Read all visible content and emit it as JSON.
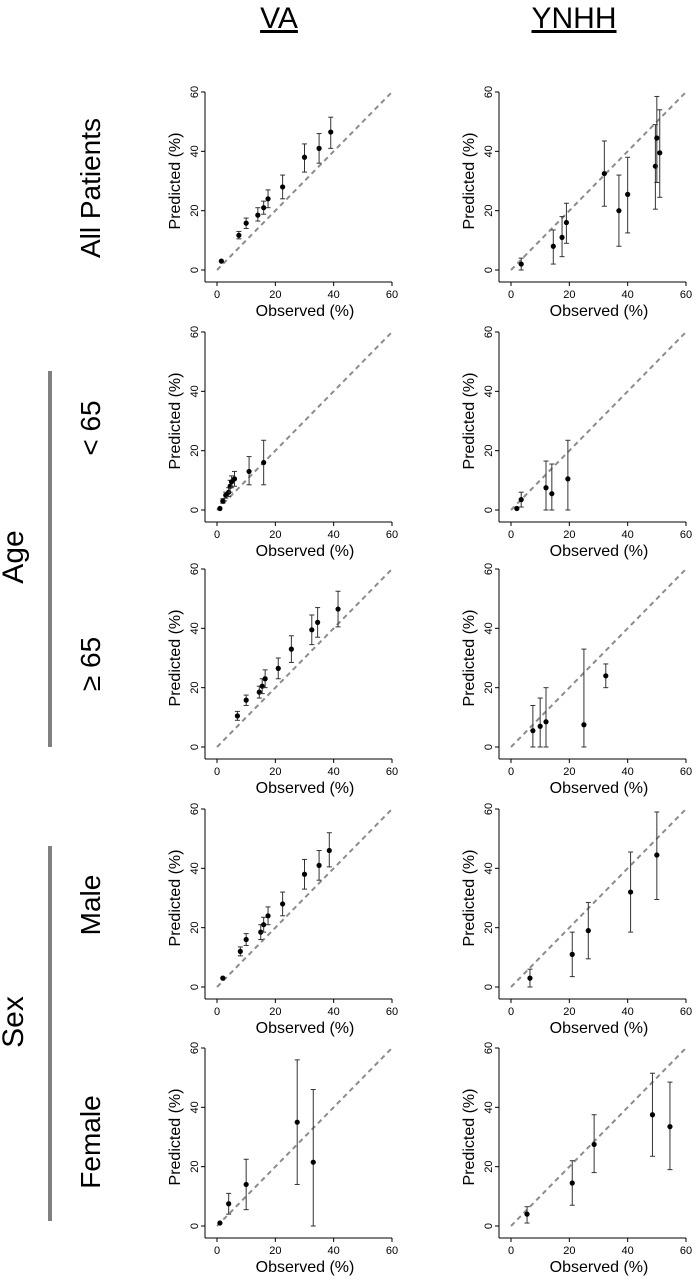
{
  "columns": [
    "VA",
    "YNHH"
  ],
  "rows": [
    "All Patients",
    "< 65",
    "≥ 65",
    "Male",
    "Female"
  ],
  "groups": {
    "age": "Age",
    "sex": "Sex"
  },
  "chart_data": [
    {
      "type": "scatter",
      "column": "VA",
      "row": "All Patients",
      "xlabel": "Observed (%)",
      "ylabel": "Predicted (%)",
      "xlim": [
        0,
        60
      ],
      "ylim": [
        0,
        60
      ],
      "xticks": [
        0,
        20,
        40,
        60
      ],
      "yticks": [
        0,
        20,
        40,
        60
      ],
      "reference_line": "y = x (dashed)",
      "points": [
        {
          "x": 1.5,
          "y": 3,
          "lo": 3,
          "hi": 3
        },
        {
          "x": 7.5,
          "y": 11.7,
          "lo": 10.5,
          "hi": 13
        },
        {
          "x": 10,
          "y": 15.8,
          "lo": 14,
          "hi": 17.5
        },
        {
          "x": 14,
          "y": 18.5,
          "lo": 16.5,
          "hi": 21
        },
        {
          "x": 16,
          "y": 21,
          "lo": 18.8,
          "hi": 23.2
        },
        {
          "x": 17.5,
          "y": 24,
          "lo": 21,
          "hi": 27
        },
        {
          "x": 22.5,
          "y": 28,
          "lo": 24,
          "hi": 32
        },
        {
          "x": 30,
          "y": 38,
          "lo": 33,
          "hi": 42.5
        },
        {
          "x": 35,
          "y": 41,
          "lo": 36,
          "hi": 46
        },
        {
          "x": 39,
          "y": 46.5,
          "lo": 41,
          "hi": 51.5
        }
      ]
    },
    {
      "type": "scatter",
      "column": "YNHH",
      "row": "All Patients",
      "xlabel": "Observed (%)",
      "ylabel": "Predicted (%)",
      "xlim": [
        0,
        60
      ],
      "ylim": [
        0,
        60
      ],
      "xticks": [
        0,
        20,
        40,
        60
      ],
      "yticks": [
        0,
        20,
        40,
        60
      ],
      "reference_line": "y = x (dashed)",
      "points": [
        {
          "x": 3.5,
          "y": 2,
          "lo": 0,
          "hi": 4
        },
        {
          "x": 14.5,
          "y": 8,
          "lo": 2,
          "hi": 13.5
        },
        {
          "x": 17.5,
          "y": 11,
          "lo": 4.5,
          "hi": 18
        },
        {
          "x": 19,
          "y": 16,
          "lo": 9,
          "hi": 22.5
        },
        {
          "x": 32,
          "y": 32.5,
          "lo": 21.5,
          "hi": 43.5
        },
        {
          "x": 37,
          "y": 20,
          "lo": 8,
          "hi": 32
        },
        {
          "x": 40,
          "y": 25.5,
          "lo": 12.5,
          "hi": 38
        },
        {
          "x": 49.5,
          "y": 35,
          "lo": 20.5,
          "hi": 49
        },
        {
          "x": 50,
          "y": 44.5,
          "lo": 29.5,
          "hi": 58.5
        },
        {
          "x": 51,
          "y": 39.5,
          "lo": 24.5,
          "hi": 54
        }
      ]
    },
    {
      "type": "scatter",
      "column": "VA",
      "row": "< 65",
      "xlabel": "Observed (%)",
      "ylabel": "Predicted (%)",
      "xlim": [
        0,
        60
      ],
      "ylim": [
        0,
        60
      ],
      "xticks": [
        0,
        20,
        40,
        60
      ],
      "yticks": [
        0,
        20,
        40,
        60
      ],
      "reference_line": "y = x (dashed)",
      "points": [
        {
          "x": 1,
          "y": 0.5,
          "lo": 0.5,
          "hi": 0.5
        },
        {
          "x": 2,
          "y": 3,
          "lo": 2.3,
          "hi": 3.8
        },
        {
          "x": 3,
          "y": 5,
          "lo": 4,
          "hi": 6
        },
        {
          "x": 4,
          "y": 6,
          "lo": 4.5,
          "hi": 7.5
        },
        {
          "x": 4.5,
          "y": 8,
          "lo": 6,
          "hi": 10
        },
        {
          "x": 5,
          "y": 9.5,
          "lo": 7.5,
          "hi": 11.5
        },
        {
          "x": 6,
          "y": 10.5,
          "lo": 8,
          "hi": 13
        },
        {
          "x": 11,
          "y": 13,
          "lo": 8.5,
          "hi": 18
        },
        {
          "x": 16,
          "y": 16,
          "lo": 8.5,
          "hi": 23.5
        }
      ]
    },
    {
      "type": "scatter",
      "column": "YNHH",
      "row": "< 65",
      "xlabel": "Observed (%)",
      "ylabel": "Predicted (%)",
      "xlim": [
        0,
        60
      ],
      "ylim": [
        0,
        60
      ],
      "xticks": [
        0,
        20,
        40,
        60
      ],
      "yticks": [
        0,
        20,
        40,
        60
      ],
      "reference_line": "y = x (dashed)",
      "points": [
        {
          "x": 2,
          "y": 0.5,
          "lo": 0.5,
          "hi": 0.5
        },
        {
          "x": 3.5,
          "y": 3.5,
          "lo": 1,
          "hi": 6
        },
        {
          "x": 12,
          "y": 7.5,
          "lo": 0,
          "hi": 16.5
        },
        {
          "x": 14,
          "y": 5.5,
          "lo": 0,
          "hi": 15.5
        },
        {
          "x": 19.5,
          "y": 10.5,
          "lo": 0,
          "hi": 23.5
        }
      ]
    },
    {
      "type": "scatter",
      "column": "VA",
      "row": "≥ 65",
      "xlabel": "Observed (%)",
      "ylabel": "Predicted (%)",
      "xlim": [
        0,
        60
      ],
      "ylim": [
        0,
        60
      ],
      "xticks": [
        0,
        20,
        40,
        60
      ],
      "yticks": [
        0,
        20,
        40,
        60
      ],
      "reference_line": "y = x (dashed)",
      "points": [
        {
          "x": 7,
          "y": 10.5,
          "lo": 9,
          "hi": 12
        },
        {
          "x": 10,
          "y": 15.8,
          "lo": 14,
          "hi": 17.5
        },
        {
          "x": 14.5,
          "y": 18.5,
          "lo": 16.5,
          "hi": 20.5
        },
        {
          "x": 15.5,
          "y": 20.5,
          "lo": 18,
          "hi": 23
        },
        {
          "x": 16.5,
          "y": 23,
          "lo": 20,
          "hi": 26
        },
        {
          "x": 21,
          "y": 26.5,
          "lo": 23,
          "hi": 30
        },
        {
          "x": 25.5,
          "y": 33,
          "lo": 28.5,
          "hi": 37.5
        },
        {
          "x": 32.5,
          "y": 39.5,
          "lo": 34.5,
          "hi": 44.5
        },
        {
          "x": 34.5,
          "y": 42,
          "lo": 37,
          "hi": 47
        },
        {
          "x": 41.5,
          "y": 46.5,
          "lo": 40.5,
          "hi": 52.5
        }
      ]
    },
    {
      "type": "scatter",
      "column": "YNHH",
      "row": "≥ 65",
      "xlabel": "Observed (%)",
      "ylabel": "Predicted (%)",
      "xlim": [
        0,
        60
      ],
      "ylim": [
        0,
        60
      ],
      "xticks": [
        0,
        20,
        40,
        60
      ],
      "yticks": [
        0,
        20,
        40,
        60
      ],
      "reference_line": "y = x (dashed)",
      "points": [
        {
          "x": 7.5,
          "y": 5.5,
          "lo": 0,
          "hi": 14
        },
        {
          "x": 10,
          "y": 7,
          "lo": 0,
          "hi": 16.5
        },
        {
          "x": 12,
          "y": 8.5,
          "lo": 0,
          "hi": 20
        },
        {
          "x": 25,
          "y": 7.5,
          "lo": 0,
          "hi": 33
        },
        {
          "x": 32.5,
          "y": 24,
          "lo": 20,
          "hi": 28
        }
      ]
    },
    {
      "type": "scatter",
      "column": "VA",
      "row": "Male",
      "xlabel": "Observed (%)",
      "ylabel": "Predicted (%)",
      "xlim": [
        0,
        60
      ],
      "ylim": [
        0,
        60
      ],
      "xticks": [
        0,
        20,
        40,
        60
      ],
      "yticks": [
        0,
        20,
        40,
        60
      ],
      "reference_line": "y = x (dashed)",
      "points": [
        {
          "x": 2,
          "y": 3,
          "lo": 3,
          "hi": 3
        },
        {
          "x": 8,
          "y": 12,
          "lo": 10.5,
          "hi": 13.5
        },
        {
          "x": 10,
          "y": 16,
          "lo": 14,
          "hi": 18
        },
        {
          "x": 15,
          "y": 18.5,
          "lo": 16,
          "hi": 21
        },
        {
          "x": 16,
          "y": 21,
          "lo": 18.5,
          "hi": 23.5
        },
        {
          "x": 17.5,
          "y": 24,
          "lo": 21,
          "hi": 27
        },
        {
          "x": 22.5,
          "y": 28,
          "lo": 24,
          "hi": 32
        },
        {
          "x": 30,
          "y": 38,
          "lo": 33,
          "hi": 43
        },
        {
          "x": 35,
          "y": 41,
          "lo": 36,
          "hi": 46
        },
        {
          "x": 38.5,
          "y": 46,
          "lo": 40.5,
          "hi": 52
        }
      ]
    },
    {
      "type": "scatter",
      "column": "YNHH",
      "row": "Male",
      "xlabel": "Observed (%)",
      "ylabel": "Predicted (%)",
      "xlim": [
        0,
        60
      ],
      "ylim": [
        0,
        60
      ],
      "xticks": [
        0,
        20,
        40,
        60
      ],
      "yticks": [
        0,
        20,
        40,
        60
      ],
      "reference_line": "y = x (dashed)",
      "points": [
        {
          "x": 6.5,
          "y": 3,
          "lo": 0,
          "hi": 6
        },
        {
          "x": 21,
          "y": 11,
          "lo": 3.5,
          "hi": 18.5
        },
        {
          "x": 26.5,
          "y": 19,
          "lo": 9.5,
          "hi": 28.5
        },
        {
          "x": 41,
          "y": 32,
          "lo": 18.5,
          "hi": 45.5
        },
        {
          "x": 50,
          "y": 44.5,
          "lo": 29.5,
          "hi": 59
        }
      ]
    },
    {
      "type": "scatter",
      "column": "VA",
      "row": "Female",
      "xlabel": "Observed (%)",
      "ylabel": "Predicted (%)",
      "xlim": [
        0,
        60
      ],
      "ylim": [
        0,
        60
      ],
      "xticks": [
        0,
        20,
        40,
        60
      ],
      "yticks": [
        0,
        20,
        40,
        60
      ],
      "reference_line": "y = x (dashed)",
      "points": [
        {
          "x": 1,
          "y": 1,
          "lo": 1,
          "hi": 1
        },
        {
          "x": 4,
          "y": 7.5,
          "lo": 4,
          "hi": 11
        },
        {
          "x": 10,
          "y": 14,
          "lo": 5.5,
          "hi": 22.5
        },
        {
          "x": 27.5,
          "y": 35,
          "lo": 14,
          "hi": 56
        },
        {
          "x": 33,
          "y": 21.5,
          "lo": 0,
          "hi": 46
        }
      ]
    },
    {
      "type": "scatter",
      "column": "YNHH",
      "row": "Female",
      "xlabel": "Observed (%)",
      "ylabel": "Predicted (%)",
      "xlim": [
        0,
        60
      ],
      "ylim": [
        0,
        60
      ],
      "xticks": [
        0,
        20,
        40,
        60
      ],
      "yticks": [
        0,
        20,
        40,
        60
      ],
      "reference_line": "y = x (dashed)",
      "points": [
        {
          "x": 5.5,
          "y": 4,
          "lo": 1,
          "hi": 6.5
        },
        {
          "x": 21,
          "y": 14.5,
          "lo": 7,
          "hi": 22
        },
        {
          "x": 28.5,
          "y": 27.5,
          "lo": 18,
          "hi": 37.5
        },
        {
          "x": 48.5,
          "y": 37.5,
          "lo": 23.5,
          "hi": 51.5
        },
        {
          "x": 54.5,
          "y": 33.5,
          "lo": 19,
          "hi": 48.5
        }
      ]
    }
  ]
}
